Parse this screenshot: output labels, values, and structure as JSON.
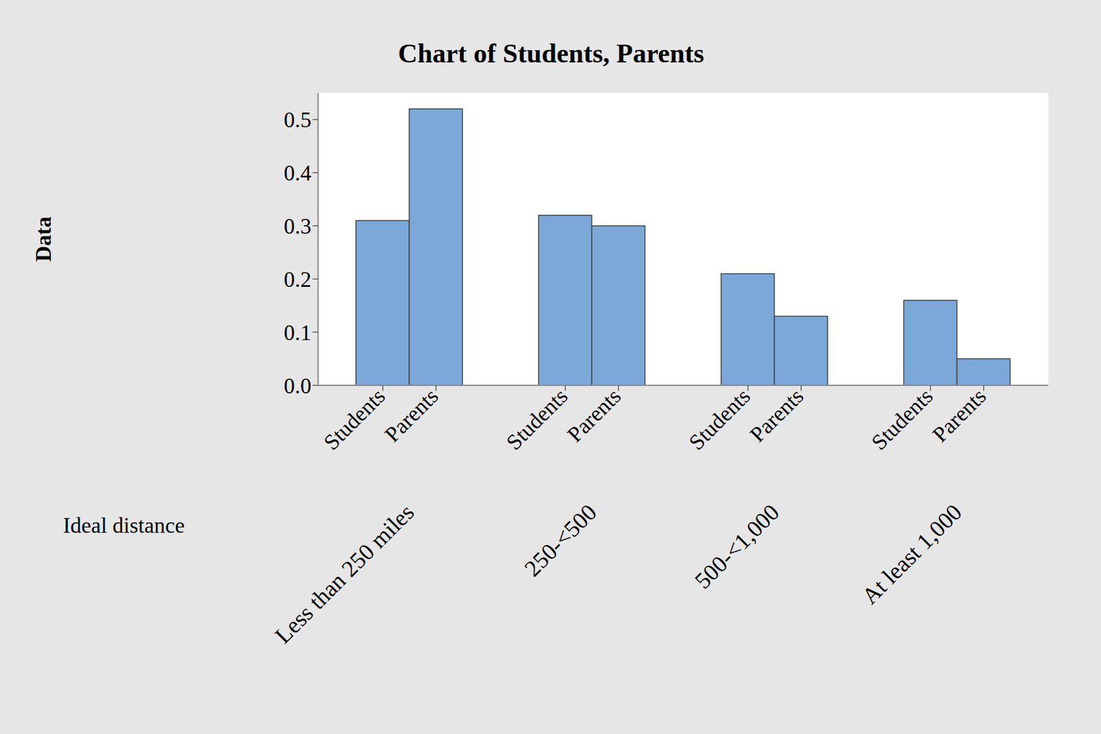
{
  "chart_data": {
    "type": "bar",
    "title": "Chart of Students, Parents",
    "y_label": "Data",
    "x_label": "Ideal distance",
    "categories": [
      "Less than 250 miles",
      "250-<500",
      "500-<1,000",
      "At least 1,000"
    ],
    "series": [
      {
        "name": "Students",
        "color": "#7ba7d9",
        "values": [
          0.31,
          0.32,
          0.21,
          0.16
        ]
      },
      {
        "name": "Parents",
        "color": "#7ba7d9",
        "values": [
          0.52,
          0.3,
          0.13,
          0.05
        ]
      }
    ],
    "ylim": [
      0,
      0.55
    ],
    "yticks": [
      {
        "value": 0,
        "label": "0.0"
      },
      0.1,
      0.2,
      0.3,
      0.4,
      0.5
    ],
    "grid": false
  }
}
